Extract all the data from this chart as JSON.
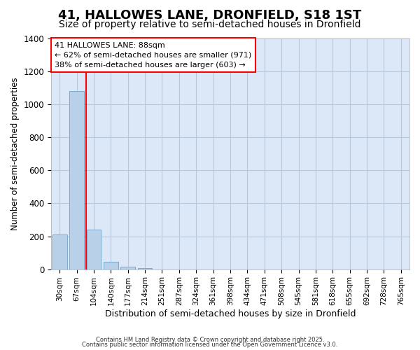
{
  "title": "41, HALLOWES LANE, DRONFIELD, S18 1ST",
  "subtitle": "Size of property relative to semi-detached houses in Dronfield",
  "xlabel": "Distribution of semi-detached houses by size in Dronfield",
  "ylabel": "Number of semi-detached properties",
  "categories": [
    "30sqm",
    "67sqm",
    "104sqm",
    "140sqm",
    "177sqm",
    "214sqm",
    "251sqm",
    "287sqm",
    "324sqm",
    "361sqm",
    "398sqm",
    "434sqm",
    "471sqm",
    "508sqm",
    "545sqm",
    "581sqm",
    "618sqm",
    "655sqm",
    "692sqm",
    "728sqm",
    "765sqm"
  ],
  "bar_values": [
    210,
    1080,
    240,
    45,
    15,
    5,
    0,
    0,
    0,
    0,
    0,
    0,
    0,
    0,
    0,
    0,
    0,
    0,
    0,
    0,
    0
  ],
  "bar_color": "#b8d0e8",
  "bar_edge_color": "#7aaad0",
  "plot_bg_color": "#dce8f8",
  "fig_bg_color": "#ffffff",
  "grid_color": "#b8c8dc",
  "annotation_text": "41 HALLOWES LANE: 88sqm\n← 62% of semi-detached houses are smaller (971)\n38% of semi-detached houses are larger (603) →",
  "ylim": [
    0,
    1400
  ],
  "yticks": [
    0,
    200,
    400,
    600,
    800,
    1000,
    1200,
    1400
  ],
  "footer1": "Contains HM Land Registry data © Crown copyright and database right 2025.",
  "footer2": "Contains public sector information licensed under the Open Government Licence v3.0.",
  "title_fontsize": 13,
  "subtitle_fontsize": 10,
  "bar_width": 0.85,
  "red_line_x": 1.57
}
